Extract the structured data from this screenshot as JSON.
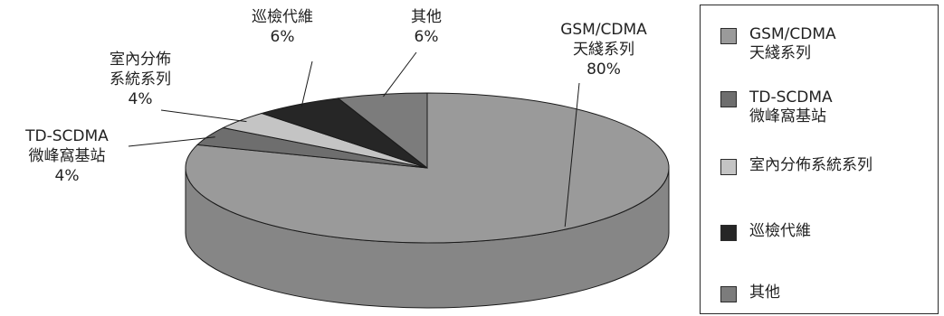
{
  "chart_data": {
    "type": "pie",
    "style": "3d",
    "slices": [
      {
        "label_lines": [
          "GSM/CDMA",
          "天綫系列"
        ],
        "pct_text": "80%",
        "value": 80,
        "color": "#9a9a9a",
        "side": "#868686"
      },
      {
        "label_lines": [
          "TD-SCDMA",
          "微峰窩基站"
        ],
        "pct_text": "4%",
        "value": 4,
        "color": "#6e6e6e",
        "side": "#5e5e5e"
      },
      {
        "label_lines": [
          "室內分佈",
          "系統系列"
        ],
        "pct_text": "4%",
        "value": 4,
        "color": "#c4c4c4",
        "side": "#b0b0b0"
      },
      {
        "label_lines": [
          "巡檢代維"
        ],
        "pct_text": "6%",
        "value": 6,
        "color": "#262626",
        "side": "#1a1a1a"
      },
      {
        "label_lines": [
          "其他"
        ],
        "pct_text": "6%",
        "value": 6,
        "color": "#7c7c7c",
        "side": "#6a6a6a"
      }
    ],
    "legend": {
      "placement": "right",
      "entries": [
        {
          "lines": [
            "GSM/CDMA",
            "天綫系列"
          ],
          "color": "#9a9a9a"
        },
        {
          "lines": [
            "TD-SCDMA",
            "微峰窩基站"
          ],
          "color": "#6e6e6e"
        },
        {
          "lines": [
            "室內分佈系統系列"
          ],
          "color": "#c4c4c4"
        },
        {
          "lines": [
            "巡檢代維"
          ],
          "color": "#262626"
        },
        {
          "lines": [
            "其他"
          ],
          "color": "#7c7c7c"
        }
      ]
    }
  }
}
